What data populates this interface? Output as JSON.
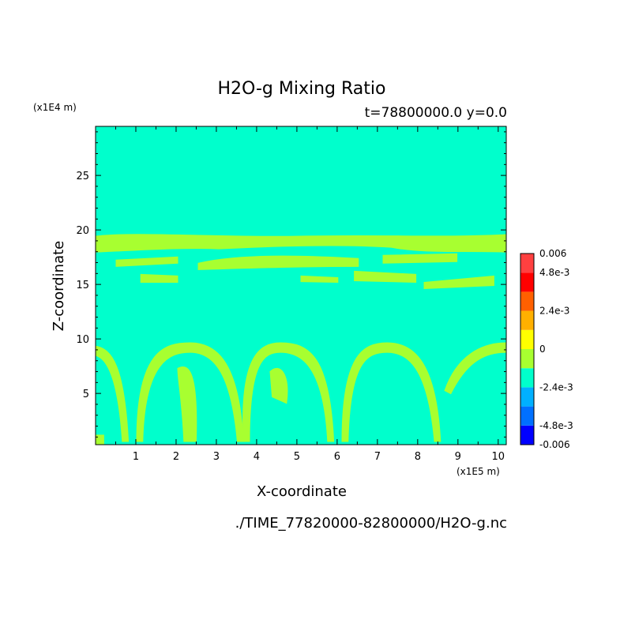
{
  "chart_data": {
    "type": "heatmap",
    "title": "H2O-g Mixing Ratio",
    "subtitle": "t=78800000.0 y=0.0",
    "xlabel": "X-coordinate",
    "ylabel": "Z-coordinate",
    "x_scale_label": "(x1E5 m)",
    "y_scale_label": "(x1E4 m)",
    "footer": "./TIME_77820000-82800000/H2O-g.nc",
    "xlim": [
      0,
      10.2
    ],
    "ylim": [
      0.3,
      29.5
    ],
    "x_ticks": [
      "1",
      "2",
      "3",
      "4",
      "5",
      "6",
      "7",
      "8",
      "9",
      "10"
    ],
    "y_ticks": [
      "5",
      "10",
      "15",
      "20",
      "25"
    ],
    "background_value": 0,
    "colorbar": {
      "labels": [
        "0.006",
        "4.8e-3",
        "2.4e-3",
        "0",
        "-2.4e-3",
        "-4.8e-3",
        "-0.006"
      ],
      "levels": [
        -0.006,
        -0.0048,
        -0.0036,
        -0.0024,
        -0.0012,
        0,
        0.0012,
        0.0024,
        0.0036,
        0.0048,
        0.006
      ],
      "colors": [
        "#00008f",
        "#0000ff",
        "#0070ff",
        "#00b0ff",
        "#00ffcc",
        "#a8ff30",
        "#ffff00",
        "#ffb000",
        "#ff6000",
        "#ff0000",
        "#ff4040"
      ]
    },
    "colors": {
      "background_field": "#00ffcc",
      "positive_band": "#a8ff30"
    }
  }
}
